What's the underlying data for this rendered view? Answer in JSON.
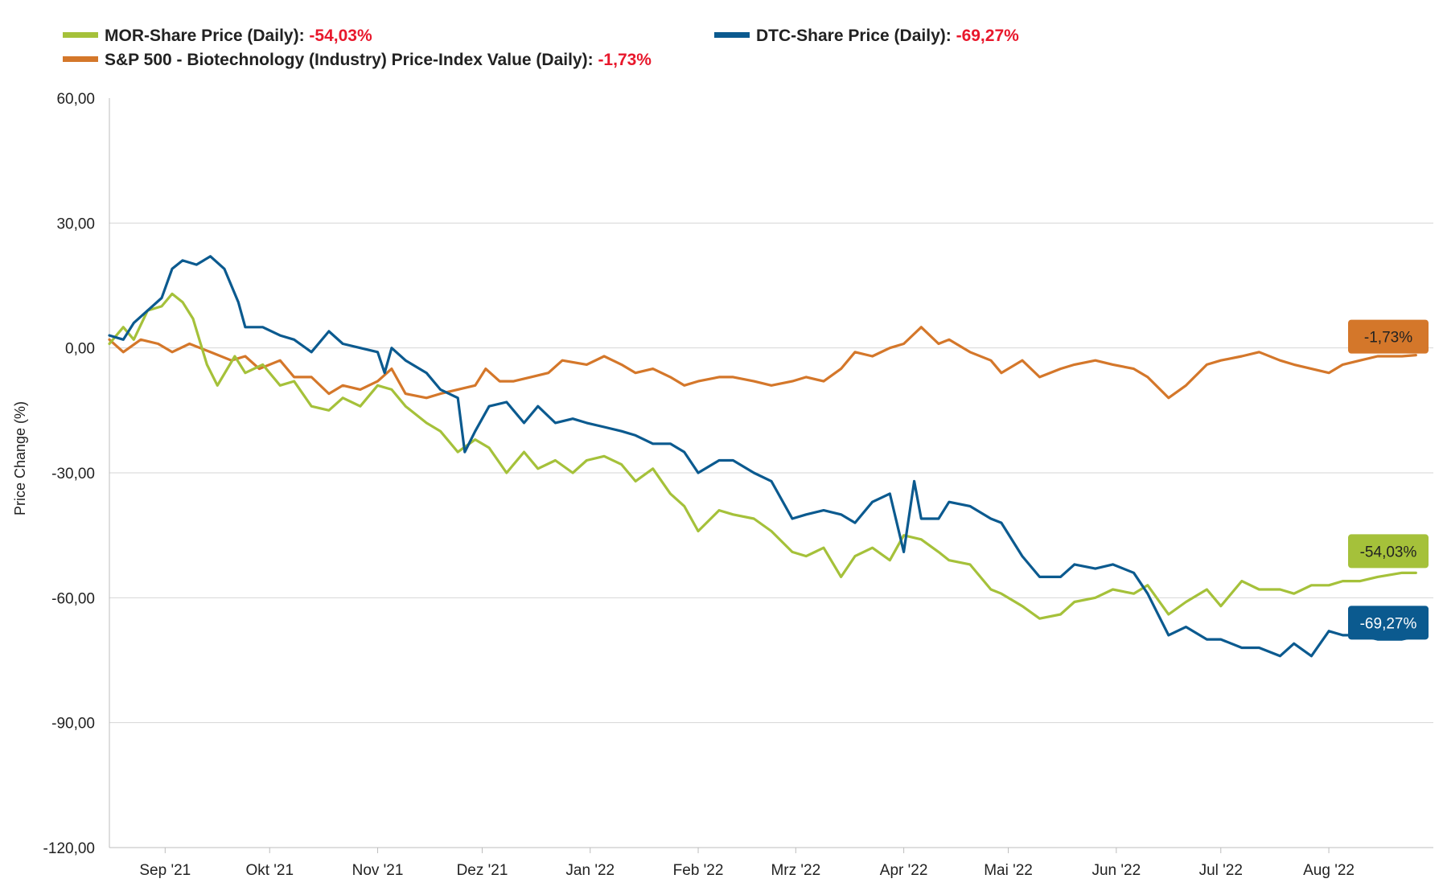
{
  "legend": [
    {
      "label": "MOR-Share Price (Daily):",
      "value": "-54,03%",
      "color": "#a5c13a"
    },
    {
      "label": "DTC-Share Price (Daily):",
      "value": "-69,27%",
      "color": "#0b5a8f"
    },
    {
      "label": "S&P 500 - Biotechnology (Industry) Price-Index Value (Daily):",
      "value": "-1,73%",
      "color": "#d4772a"
    }
  ],
  "chart_data": {
    "type": "line",
    "ylabel": "Price Change (%)",
    "ylim": [
      -120,
      60
    ],
    "yticks": [
      60,
      30,
      0,
      -30,
      -60,
      -90,
      -120
    ],
    "ytick_labels": [
      "60,00",
      "30,00",
      "0,00",
      "-30,00",
      "-60,00",
      "-90,00",
      "-120,00"
    ],
    "x_domain": [
      "2021-08-16",
      "2022-08-31"
    ],
    "xticks": [
      "2021-09-01",
      "2021-10-01",
      "2021-11-01",
      "2021-12-01",
      "2022-01-01",
      "2022-02-01",
      "2022-03-01",
      "2022-04-01",
      "2022-05-01",
      "2022-06-01",
      "2022-07-01",
      "2022-08-01"
    ],
    "xtick_labels": [
      "Sep '21",
      "Okt '21",
      "Nov '21",
      "Dez '21",
      "Jan '22",
      "Feb '22",
      "Mrz '22",
      "Apr '22",
      "Mai '22",
      "Jun '22",
      "Jul '22",
      "Aug '22"
    ],
    "grid": "horizontal",
    "legend_position": "top",
    "series": [
      {
        "name": "S&P 500 - Biotechnology (Industry) Price-Index Value (Daily)",
        "color": "#d4772a",
        "end_label": "-1,73%",
        "points": [
          [
            "2021-08-16",
            2
          ],
          [
            "2021-08-20",
            -1
          ],
          [
            "2021-08-25",
            2
          ],
          [
            "2021-08-30",
            1
          ],
          [
            "2021-09-03",
            -1
          ],
          [
            "2021-09-08",
            1
          ],
          [
            "2021-09-14",
            -1
          ],
          [
            "2021-09-20",
            -3
          ],
          [
            "2021-09-24",
            -2
          ],
          [
            "2021-09-28",
            -5
          ],
          [
            "2021-10-04",
            -3
          ],
          [
            "2021-10-08",
            -7
          ],
          [
            "2021-10-13",
            -7
          ],
          [
            "2021-10-18",
            -11
          ],
          [
            "2021-10-22",
            -9
          ],
          [
            "2021-10-27",
            -10
          ],
          [
            "2021-11-01",
            -8
          ],
          [
            "2021-11-05",
            -5
          ],
          [
            "2021-11-09",
            -11
          ],
          [
            "2021-11-15",
            -12
          ],
          [
            "2021-11-19",
            -11
          ],
          [
            "2021-11-24",
            -10
          ],
          [
            "2021-11-29",
            -9
          ],
          [
            "2021-12-02",
            -5
          ],
          [
            "2021-12-06",
            -8
          ],
          [
            "2021-12-10",
            -8
          ],
          [
            "2021-12-15",
            -7
          ],
          [
            "2021-12-20",
            -6
          ],
          [
            "2021-12-24",
            -3
          ],
          [
            "2021-12-31",
            -4
          ],
          [
            "2022-01-05",
            -2
          ],
          [
            "2022-01-10",
            -4
          ],
          [
            "2022-01-14",
            -6
          ],
          [
            "2022-01-19",
            -5
          ],
          [
            "2022-01-24",
            -7
          ],
          [
            "2022-01-28",
            -9
          ],
          [
            "2022-02-01",
            -8
          ],
          [
            "2022-02-07",
            -7
          ],
          [
            "2022-02-11",
            -7
          ],
          [
            "2022-02-17",
            -8
          ],
          [
            "2022-02-22",
            -9
          ],
          [
            "2022-02-28",
            -8
          ],
          [
            "2022-03-04",
            -7
          ],
          [
            "2022-03-09",
            -8
          ],
          [
            "2022-03-14",
            -5
          ],
          [
            "2022-03-18",
            -1
          ],
          [
            "2022-03-23",
            -2
          ],
          [
            "2022-03-28",
            0
          ],
          [
            "2022-04-01",
            1
          ],
          [
            "2022-04-06",
            5
          ],
          [
            "2022-04-11",
            1
          ],
          [
            "2022-04-14",
            2
          ],
          [
            "2022-04-20",
            -1
          ],
          [
            "2022-04-26",
            -3
          ],
          [
            "2022-04-29",
            -6
          ],
          [
            "2022-05-05",
            -3
          ],
          [
            "2022-05-10",
            -7
          ],
          [
            "2022-05-16",
            -5
          ],
          [
            "2022-05-20",
            -4
          ],
          [
            "2022-05-26",
            -3
          ],
          [
            "2022-05-31",
            -4
          ],
          [
            "2022-06-06",
            -5
          ],
          [
            "2022-06-10",
            -7
          ],
          [
            "2022-06-16",
            -12
          ],
          [
            "2022-06-21",
            -9
          ],
          [
            "2022-06-27",
            -4
          ],
          [
            "2022-07-01",
            -3
          ],
          [
            "2022-07-07",
            -2
          ],
          [
            "2022-07-12",
            -1
          ],
          [
            "2022-07-18",
            -3
          ],
          [
            "2022-07-22",
            -4
          ],
          [
            "2022-07-27",
            -5
          ],
          [
            "2022-08-01",
            -6
          ],
          [
            "2022-08-05",
            -4
          ],
          [
            "2022-08-10",
            -3
          ],
          [
            "2022-08-15",
            -2
          ],
          [
            "2022-08-22",
            -2
          ],
          [
            "2022-08-26",
            -1.73
          ]
        ]
      },
      {
        "name": "MOR-Share Price (Daily)",
        "color": "#a5c13a",
        "end_label": "-54,03%",
        "points": [
          [
            "2021-08-16",
            1
          ],
          [
            "2021-08-20",
            5
          ],
          [
            "2021-08-23",
            2
          ],
          [
            "2021-08-27",
            9
          ],
          [
            "2021-08-31",
            10
          ],
          [
            "2021-09-03",
            13
          ],
          [
            "2021-09-06",
            11
          ],
          [
            "2021-09-09",
            7
          ],
          [
            "2021-09-13",
            -4
          ],
          [
            "2021-09-16",
            -9
          ],
          [
            "2021-09-21",
            -2
          ],
          [
            "2021-09-24",
            -6
          ],
          [
            "2021-09-29",
            -4
          ],
          [
            "2021-10-04",
            -9
          ],
          [
            "2021-10-08",
            -8
          ],
          [
            "2021-10-13",
            -14
          ],
          [
            "2021-10-18",
            -15
          ],
          [
            "2021-10-22",
            -12
          ],
          [
            "2021-10-27",
            -14
          ],
          [
            "2021-11-01",
            -9
          ],
          [
            "2021-11-05",
            -10
          ],
          [
            "2021-11-09",
            -14
          ],
          [
            "2021-11-15",
            -18
          ],
          [
            "2021-11-19",
            -20
          ],
          [
            "2021-11-24",
            -25
          ],
          [
            "2021-11-29",
            -22
          ],
          [
            "2021-12-03",
            -24
          ],
          [
            "2021-12-08",
            -30
          ],
          [
            "2021-12-13",
            -25
          ],
          [
            "2021-12-17",
            -29
          ],
          [
            "2021-12-22",
            -27
          ],
          [
            "2021-12-27",
            -30
          ],
          [
            "2021-12-31",
            -27
          ],
          [
            "2022-01-05",
            -26
          ],
          [
            "2022-01-10",
            -28
          ],
          [
            "2022-01-14",
            -32
          ],
          [
            "2022-01-19",
            -29
          ],
          [
            "2022-01-24",
            -35
          ],
          [
            "2022-01-28",
            -38
          ],
          [
            "2022-02-01",
            -44
          ],
          [
            "2022-02-07",
            -39
          ],
          [
            "2022-02-11",
            -40
          ],
          [
            "2022-02-17",
            -41
          ],
          [
            "2022-02-22",
            -44
          ],
          [
            "2022-02-28",
            -49
          ],
          [
            "2022-03-04",
            -50
          ],
          [
            "2022-03-09",
            -48
          ],
          [
            "2022-03-14",
            -55
          ],
          [
            "2022-03-18",
            -50
          ],
          [
            "2022-03-23",
            -48
          ],
          [
            "2022-03-28",
            -51
          ],
          [
            "2022-04-01",
            -45
          ],
          [
            "2022-04-06",
            -46
          ],
          [
            "2022-04-11",
            -49
          ],
          [
            "2022-04-14",
            -51
          ],
          [
            "2022-04-20",
            -52
          ],
          [
            "2022-04-26",
            -58
          ],
          [
            "2022-04-29",
            -59
          ],
          [
            "2022-05-05",
            -62
          ],
          [
            "2022-05-10",
            -65
          ],
          [
            "2022-05-16",
            -64
          ],
          [
            "2022-05-20",
            -61
          ],
          [
            "2022-05-26",
            -60
          ],
          [
            "2022-05-31",
            -58
          ],
          [
            "2022-06-06",
            -59
          ],
          [
            "2022-06-10",
            -57
          ],
          [
            "2022-06-16",
            -64
          ],
          [
            "2022-06-21",
            -61
          ],
          [
            "2022-06-27",
            -58
          ],
          [
            "2022-07-01",
            -62
          ],
          [
            "2022-07-07",
            -56
          ],
          [
            "2022-07-12",
            -58
          ],
          [
            "2022-07-18",
            -58
          ],
          [
            "2022-07-22",
            -59
          ],
          [
            "2022-07-27",
            -57
          ],
          [
            "2022-08-01",
            -57
          ],
          [
            "2022-08-05",
            -56
          ],
          [
            "2022-08-10",
            -56
          ],
          [
            "2022-08-15",
            -55
          ],
          [
            "2022-08-22",
            -54
          ],
          [
            "2022-08-26",
            -54.03
          ]
        ]
      },
      {
        "name": "DTC-Share Price (Daily)",
        "color": "#0b5a8f",
        "end_label": "-69,27%",
        "points": [
          [
            "2021-08-16",
            3
          ],
          [
            "2021-08-20",
            2
          ],
          [
            "2021-08-23",
            6
          ],
          [
            "2021-08-27",
            9
          ],
          [
            "2021-08-31",
            12
          ],
          [
            "2021-09-03",
            19
          ],
          [
            "2021-09-06",
            21
          ],
          [
            "2021-09-10",
            20
          ],
          [
            "2021-09-14",
            22
          ],
          [
            "2021-09-18",
            19
          ],
          [
            "2021-09-22",
            11
          ],
          [
            "2021-09-24",
            5
          ],
          [
            "2021-09-29",
            5
          ],
          [
            "2021-10-04",
            3
          ],
          [
            "2021-10-08",
            2
          ],
          [
            "2021-10-13",
            -1
          ],
          [
            "2021-10-18",
            4
          ],
          [
            "2021-10-22",
            1
          ],
          [
            "2021-10-27",
            0
          ],
          [
            "2021-11-01",
            -1
          ],
          [
            "2021-11-03",
            -6
          ],
          [
            "2021-11-05",
            0
          ],
          [
            "2021-11-09",
            -3
          ],
          [
            "2021-11-15",
            -6
          ],
          [
            "2021-11-19",
            -10
          ],
          [
            "2021-11-24",
            -12
          ],
          [
            "2021-11-26",
            -25
          ],
          [
            "2021-11-29",
            -20
          ],
          [
            "2021-12-03",
            -14
          ],
          [
            "2021-12-08",
            -13
          ],
          [
            "2021-12-13",
            -18
          ],
          [
            "2021-12-17",
            -14
          ],
          [
            "2021-12-22",
            -18
          ],
          [
            "2021-12-27",
            -17
          ],
          [
            "2021-12-31",
            -18
          ],
          [
            "2022-01-05",
            -19
          ],
          [
            "2022-01-10",
            -20
          ],
          [
            "2022-01-14",
            -21
          ],
          [
            "2022-01-19",
            -23
          ],
          [
            "2022-01-24",
            -23
          ],
          [
            "2022-01-28",
            -25
          ],
          [
            "2022-02-01",
            -30
          ],
          [
            "2022-02-07",
            -27
          ],
          [
            "2022-02-11",
            -27
          ],
          [
            "2022-02-17",
            -30
          ],
          [
            "2022-02-22",
            -32
          ],
          [
            "2022-02-28",
            -41
          ],
          [
            "2022-03-04",
            -40
          ],
          [
            "2022-03-09",
            -39
          ],
          [
            "2022-03-14",
            -40
          ],
          [
            "2022-03-18",
            -42
          ],
          [
            "2022-03-23",
            -37
          ],
          [
            "2022-03-28",
            -35
          ],
          [
            "2022-04-01",
            -49
          ],
          [
            "2022-04-04",
            -32
          ],
          [
            "2022-04-06",
            -41
          ],
          [
            "2022-04-11",
            -41
          ],
          [
            "2022-04-14",
            -37
          ],
          [
            "2022-04-20",
            -38
          ],
          [
            "2022-04-26",
            -41
          ],
          [
            "2022-04-29",
            -42
          ],
          [
            "2022-05-05",
            -50
          ],
          [
            "2022-05-10",
            -55
          ],
          [
            "2022-05-16",
            -55
          ],
          [
            "2022-05-20",
            -52
          ],
          [
            "2022-05-26",
            -53
          ],
          [
            "2022-05-31",
            -52
          ],
          [
            "2022-06-06",
            -54
          ],
          [
            "2022-06-10",
            -59
          ],
          [
            "2022-06-16",
            -69
          ],
          [
            "2022-06-21",
            -67
          ],
          [
            "2022-06-27",
            -70
          ],
          [
            "2022-07-01",
            -70
          ],
          [
            "2022-07-07",
            -72
          ],
          [
            "2022-07-12",
            -72
          ],
          [
            "2022-07-18",
            -74
          ],
          [
            "2022-07-22",
            -71
          ],
          [
            "2022-07-27",
            -74
          ],
          [
            "2022-08-01",
            -68
          ],
          [
            "2022-08-05",
            -69
          ],
          [
            "2022-08-10",
            -69
          ],
          [
            "2022-08-15",
            -70
          ],
          [
            "2022-08-22",
            -70
          ],
          [
            "2022-08-26",
            -69.27
          ]
        ]
      }
    ]
  }
}
